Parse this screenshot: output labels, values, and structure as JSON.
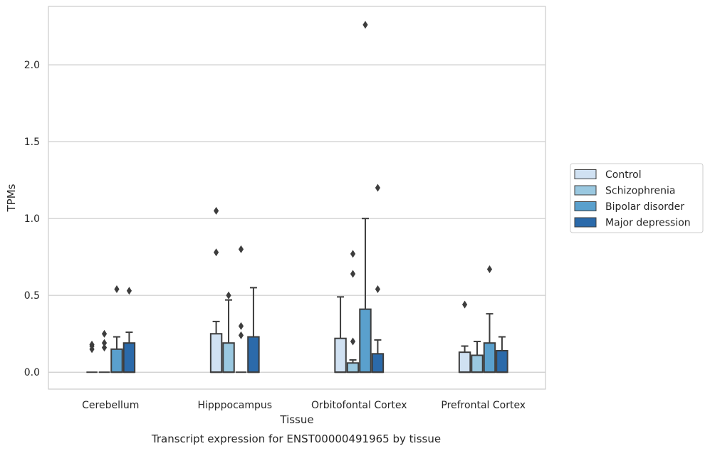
{
  "caption": "Transcript expression for ENST00000491965 by tissue",
  "chart_data": {
    "type": "box",
    "xlabel": "Tissue",
    "ylabel": "TPMs",
    "ylim": [
      -0.11,
      2.38
    ],
    "yticks": [
      0.0,
      0.5,
      1.0,
      1.5,
      2.0
    ],
    "ytick_labels": [
      "0.0",
      "0.5",
      "1.0",
      "1.5",
      "2.0"
    ],
    "grid": "horizontal",
    "legend_position": "right",
    "categories": [
      "Cerebellum",
      "Hipppocampus",
      "Orbitofontal Cortex",
      "Prefrontal Cortex"
    ],
    "series": [
      {
        "name": "Control",
        "color": "#d0e1f2",
        "boxes": [
          {
            "q1": 0.0,
            "median": 0.0,
            "q3": 0.0,
            "whisker_low": 0.0,
            "whisker_high": 0.0,
            "outliers": [
              0.15,
              0.17,
              0.18
            ]
          },
          {
            "q1": 0.0,
            "median": 0.0,
            "q3": 0.25,
            "whisker_low": 0.0,
            "whisker_high": 0.33,
            "outliers": [
              0.78,
              1.05
            ]
          },
          {
            "q1": 0.0,
            "median": 0.0,
            "q3": 0.22,
            "whisker_low": 0.0,
            "whisker_high": 0.49,
            "outliers": []
          },
          {
            "q1": 0.0,
            "median": 0.0,
            "q3": 0.13,
            "whisker_low": 0.0,
            "whisker_high": 0.17,
            "outliers": [
              0.44
            ]
          }
        ]
      },
      {
        "name": "Schizophrenia",
        "color": "#9ac8e0",
        "boxes": [
          {
            "q1": 0.0,
            "median": 0.0,
            "q3": 0.0,
            "whisker_low": 0.0,
            "whisker_high": 0.0,
            "outliers": [
              0.16,
              0.19,
              0.25
            ]
          },
          {
            "q1": 0.0,
            "median": 0.0,
            "q3": 0.19,
            "whisker_low": 0.0,
            "whisker_high": 0.47,
            "outliers": [
              0.5
            ]
          },
          {
            "q1": 0.0,
            "median": 0.0,
            "q3": 0.06,
            "whisker_low": 0.0,
            "whisker_high": 0.08,
            "outliers": [
              0.2,
              0.64,
              0.77
            ]
          },
          {
            "q1": 0.0,
            "median": 0.0,
            "q3": 0.11,
            "whisker_low": 0.0,
            "whisker_high": 0.2,
            "outliers": []
          }
        ]
      },
      {
        "name": "Bipolar disorder",
        "color": "#5aa0cd",
        "boxes": [
          {
            "q1": 0.0,
            "median": 0.0,
            "q3": 0.15,
            "whisker_low": 0.0,
            "whisker_high": 0.23,
            "outliers": [
              0.54
            ]
          },
          {
            "q1": 0.0,
            "median": 0.0,
            "q3": 0.0,
            "whisker_low": 0.0,
            "whisker_high": 0.0,
            "outliers": [
              0.24,
              0.3,
              0.8
            ]
          },
          {
            "q1": 0.0,
            "median": 0.0,
            "q3": 0.41,
            "whisker_low": 0.0,
            "whisker_high": 1.0,
            "outliers": [
              2.26
            ]
          },
          {
            "q1": 0.0,
            "median": 0.0,
            "q3": 0.19,
            "whisker_low": 0.0,
            "whisker_high": 0.38,
            "outliers": [
              0.67
            ]
          }
        ]
      },
      {
        "name": "Major depression",
        "color": "#2b6aaa",
        "boxes": [
          {
            "q1": 0.0,
            "median": 0.0,
            "q3": 0.19,
            "whisker_low": 0.0,
            "whisker_high": 0.26,
            "outliers": [
              0.53
            ]
          },
          {
            "q1": 0.0,
            "median": 0.0,
            "q3": 0.23,
            "whisker_low": 0.0,
            "whisker_high": 0.55,
            "outliers": []
          },
          {
            "q1": 0.0,
            "median": 0.0,
            "q3": 0.12,
            "whisker_low": 0.0,
            "whisker_high": 0.21,
            "outliers": [
              0.54,
              1.2
            ]
          },
          {
            "q1": 0.0,
            "median": 0.0,
            "q3": 0.14,
            "whisker_low": 0.0,
            "whisker_high": 0.23,
            "outliers": []
          }
        ]
      }
    ]
  }
}
